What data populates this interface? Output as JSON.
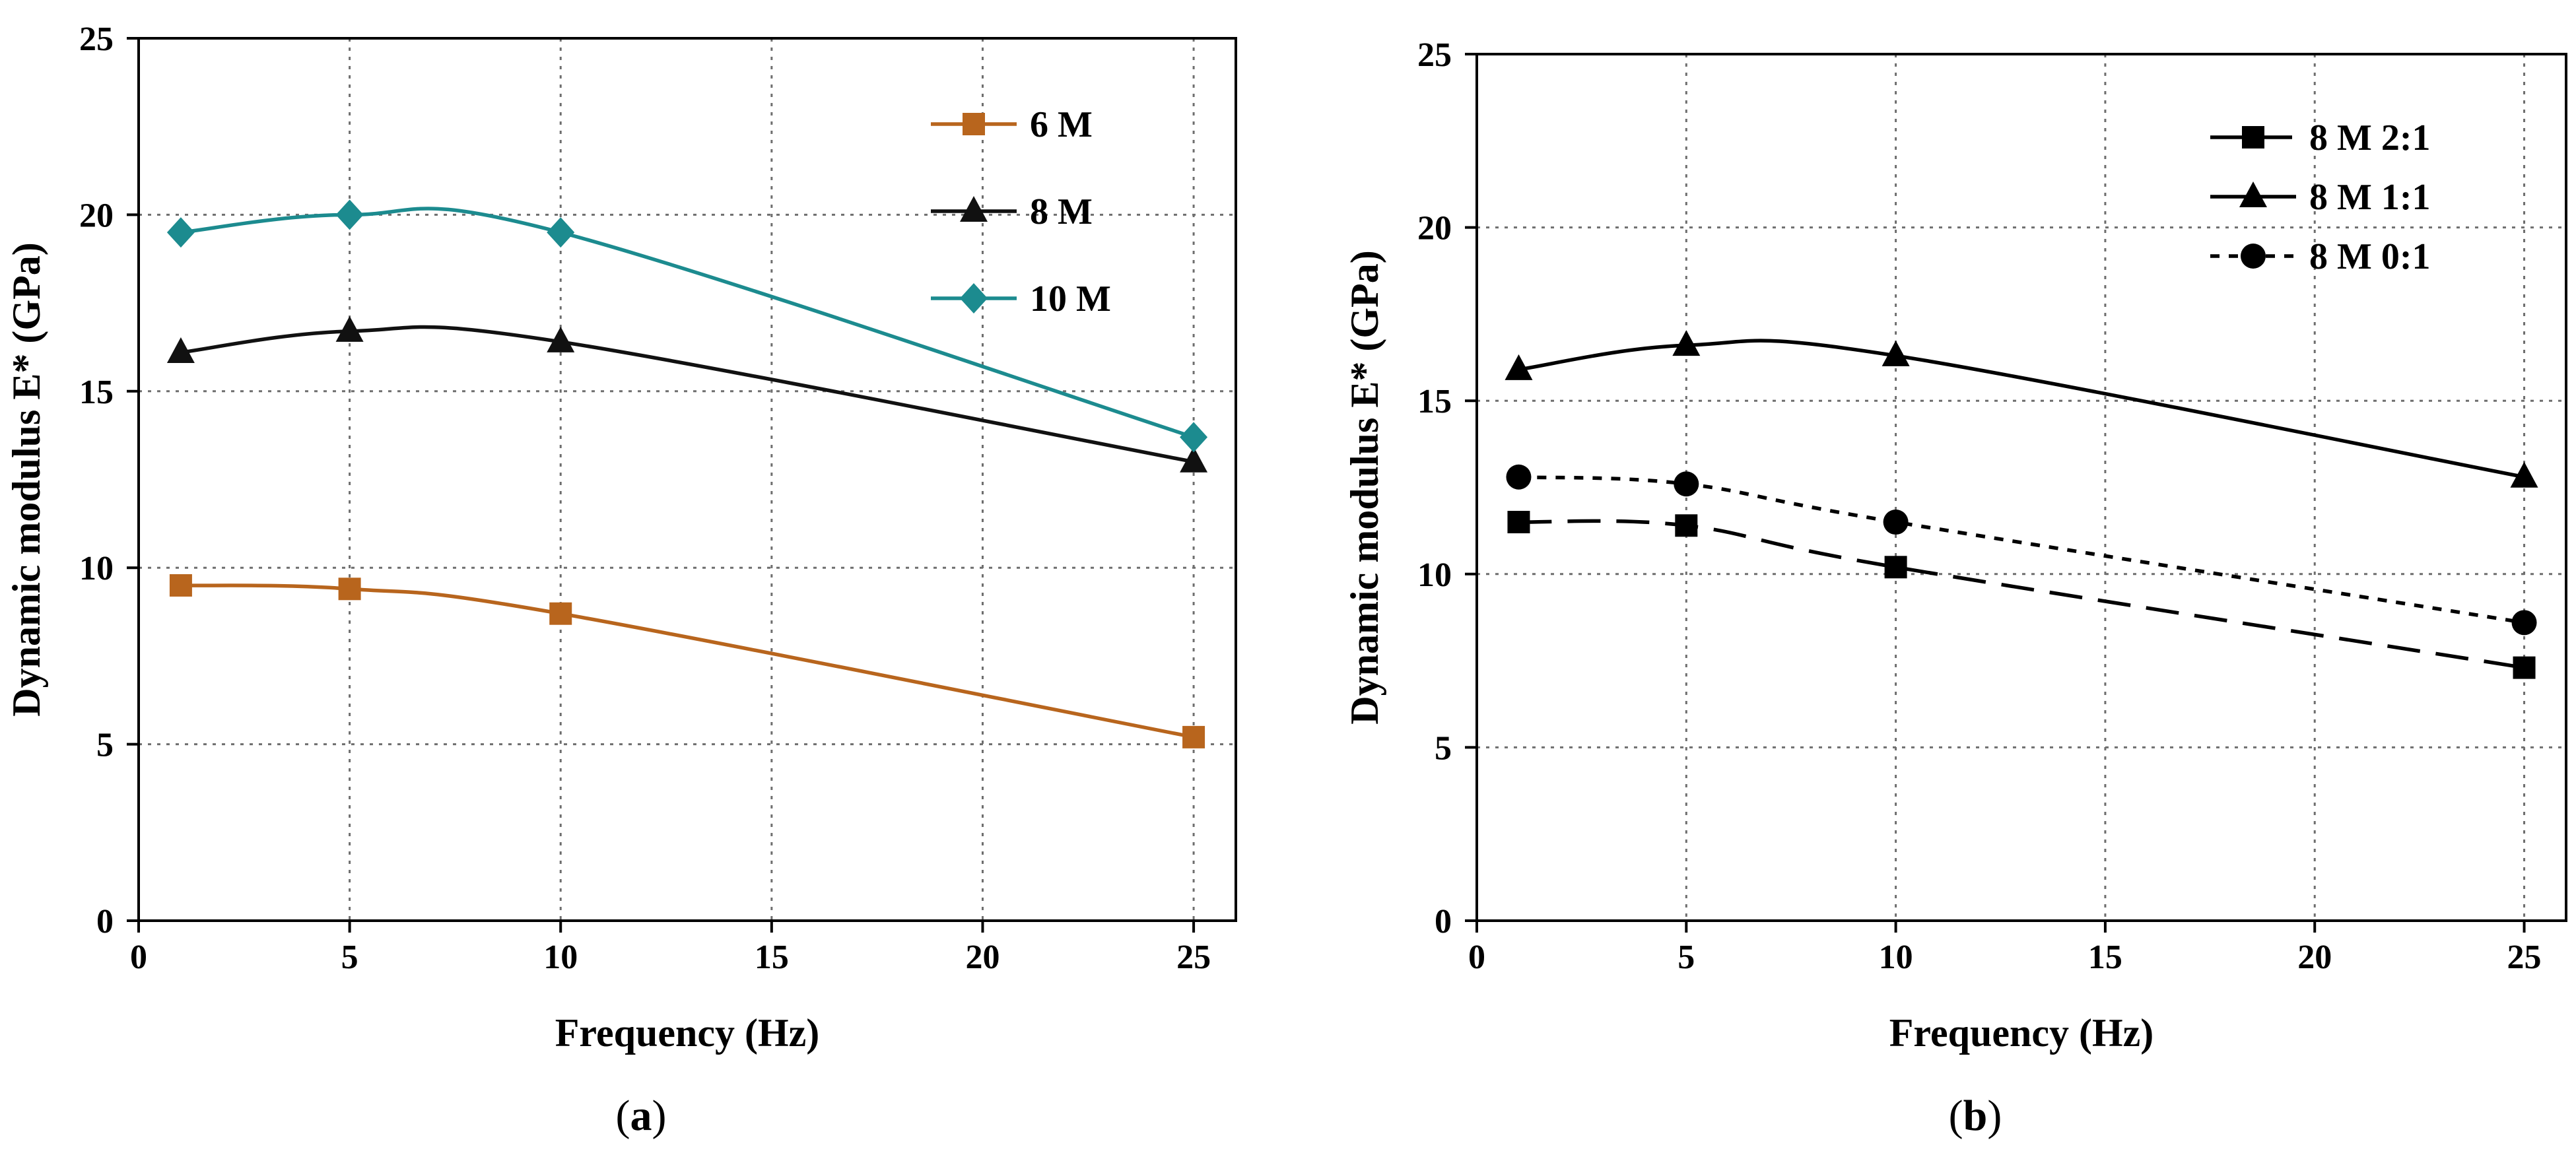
{
  "chart_data": [
    {
      "type": "line",
      "panel_label": "a",
      "xlabel": "Frequency (Hz)",
      "ylabel": "Dynamic modulus E* (GPa)",
      "xlim": [
        0,
        26
      ],
      "ylim": [
        0,
        25
      ],
      "xticks": [
        0,
        5,
        10,
        15,
        20,
        25
      ],
      "yticks": [
        0,
        5,
        10,
        15,
        20,
        25
      ],
      "grid": true,
      "legend_position": "top-right",
      "series": [
        {
          "name": "6 M",
          "color": "#b8651d",
          "marker": "square",
          "line": "solid",
          "x": [
            1,
            5,
            10,
            25
          ],
          "y": [
            9.5,
            9.4,
            8.7,
            5.2
          ]
        },
        {
          "name": "8 M",
          "color": "#111111",
          "marker": "triangle",
          "line": "solid",
          "x": [
            1,
            5,
            10,
            25
          ],
          "y": [
            16.1,
            16.7,
            16.4,
            13.0
          ]
        },
        {
          "name": "10 M",
          "color": "#1c8b8f",
          "marker": "diamond",
          "line": "solid",
          "x": [
            1,
            5,
            10,
            25
          ],
          "y": [
            19.5,
            20.0,
            19.5,
            13.7
          ]
        }
      ]
    },
    {
      "type": "line",
      "panel_label": "b",
      "xlabel": "Frequency (Hz)",
      "ylabel": "Dynamic modulus E* (GPa)",
      "xlim": [
        0,
        26
      ],
      "ylim": [
        0,
        25
      ],
      "xticks": [
        0,
        5,
        10,
        15,
        20,
        25
      ],
      "yticks": [
        0,
        5,
        10,
        15,
        20,
        25
      ],
      "grid": true,
      "legend_position": "top-right",
      "series": [
        {
          "name": "8 M 2:1",
          "color": "#000000",
          "marker": "square",
          "line": "dashed",
          "x": [
            1,
            5,
            10,
            25
          ],
          "y": [
            11.5,
            11.4,
            10.2,
            7.3
          ]
        },
        {
          "name": "8 M 1:1",
          "color": "#000000",
          "marker": "triangle",
          "line": "solid",
          "x": [
            1,
            5,
            10,
            25
          ],
          "y": [
            15.9,
            16.6,
            16.3,
            12.8
          ]
        },
        {
          "name": "8 M 0:1",
          "color": "#000000",
          "marker": "circle",
          "line": "dotted",
          "x": [
            1,
            5,
            10,
            25
          ],
          "y": [
            12.8,
            12.6,
            11.5,
            8.6
          ]
        }
      ]
    }
  ]
}
